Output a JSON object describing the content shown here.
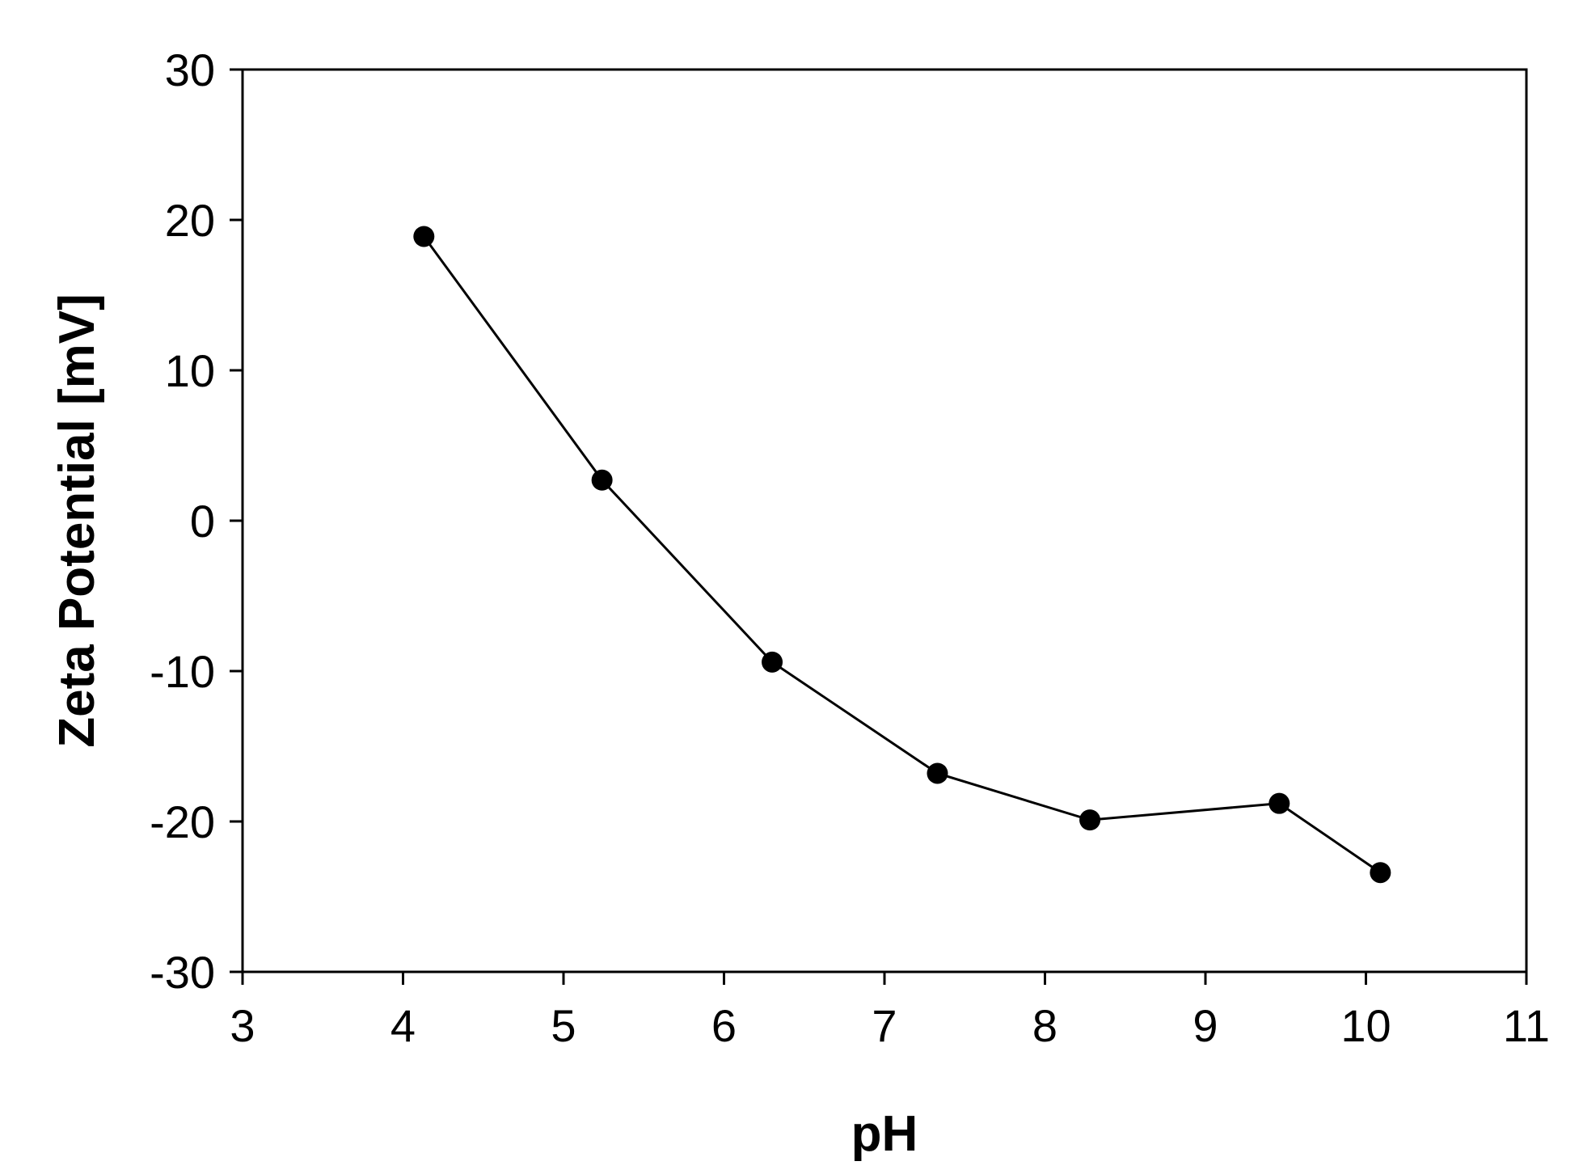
{
  "chart_data": {
    "type": "line",
    "title": "",
    "xlabel": "pH",
    "ylabel": "Zeta Potential [mV]",
    "xlim": [
      3,
      11
    ],
    "ylim": [
      -30,
      30
    ],
    "x_ticks": [
      3,
      4,
      5,
      6,
      7,
      8,
      9,
      10,
      11
    ],
    "y_ticks": [
      -30,
      -20,
      -10,
      0,
      10,
      20,
      30
    ],
    "grid": false,
    "legend": "none",
    "series": [
      {
        "x": [
          4.13,
          5.24,
          6.3,
          7.33,
          8.28,
          9.46,
          10.09
        ],
        "y": [
          18.9,
          2.7,
          -9.4,
          -16.8,
          -19.9,
          -18.8,
          -23.4
        ],
        "color": "#000000",
        "marker": "circle"
      }
    ]
  }
}
